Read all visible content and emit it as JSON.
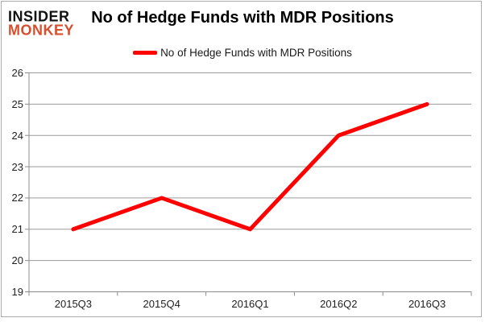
{
  "logo": {
    "line1": "INSIDER",
    "line2": "MONKEY"
  },
  "title": "No of Hedge Funds with MDR Positions",
  "legend": {
    "label": "No of Hedge Funds with MDR Positions"
  },
  "colors": {
    "series": "#ff0000",
    "grid": "#9a9a9a",
    "axis": "#8c8c8c",
    "logo_accent": "#d94e2c",
    "logo_black": "#111111",
    "border": "#ababab"
  },
  "chart_data": {
    "type": "line",
    "title": "No of Hedge Funds with MDR Positions",
    "categories": [
      "2015Q3",
      "2015Q4",
      "2016Q1",
      "2016Q2",
      "2016Q3"
    ],
    "series": [
      {
        "name": "No of Hedge Funds with MDR Positions",
        "color": "#ff0000",
        "values": [
          21,
          22,
          21,
          24,
          25
        ]
      }
    ],
    "xlabel": "",
    "ylabel": "",
    "ylim": [
      19,
      26
    ],
    "ytick_step": 1,
    "grid": true,
    "legend_position": "top-center"
  }
}
